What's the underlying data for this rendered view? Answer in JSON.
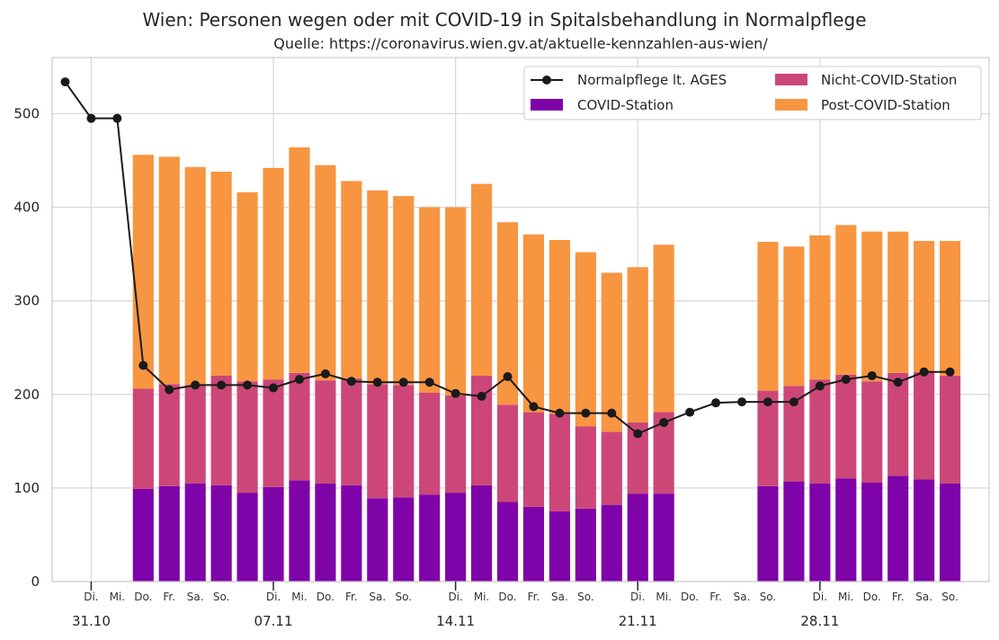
{
  "chart_data": {
    "type": "bar",
    "title": "Wien: Personen wegen oder mit COVID-19 in Spitalsbehandlung in Normalpflege",
    "subtitle": "Quelle: https://coronavirus.wien.gv.at/aktuelle-kennzahlen-aus-wien/",
    "ylim": [
      0,
      560
    ],
    "yticks": [
      0,
      100,
      200,
      300,
      400,
      500
    ],
    "grid": true,
    "legend_position": "top-right",
    "day_labels": [
      "",
      "Di.",
      "Mi.",
      "Do.",
      "Fr.",
      "Sa.",
      "So.",
      "",
      "Di.",
      "Mi.",
      "Do.",
      "Fr.",
      "Sa.",
      "So.",
      "",
      "Di.",
      "Mi.",
      "Do.",
      "Fr.",
      "Sa.",
      "So.",
      "",
      "Di.",
      "Mi.",
      "Do.",
      "Fr.",
      "Sa.",
      "So.",
      "",
      "Di.",
      "Mi.",
      "Do.",
      "Fr.",
      "Sa.",
      "So."
    ],
    "date_labels": [
      {
        "day": 1,
        "label": "31.10"
      },
      {
        "day": 8,
        "label": "07.11"
      },
      {
        "day": 15,
        "label": "14.11"
      },
      {
        "day": 22,
        "label": "21.11"
      },
      {
        "day": 29,
        "label": "28.11"
      }
    ],
    "x_range": [
      -0.5,
      35.5
    ],
    "series": [
      {
        "name": "COVID-Station",
        "color": "#7e03a8",
        "stack": "wards",
        "values": [
          null,
          null,
          null,
          99,
          102,
          105,
          103,
          95,
          101,
          108,
          105,
          103,
          89,
          90,
          93,
          95,
          103,
          85,
          80,
          75,
          78,
          82,
          94,
          94,
          null,
          null,
          null,
          102,
          107,
          105,
          110,
          106,
          113,
          109,
          105,
          null
        ]
      },
      {
        "name": "Nicht-COVID-Station",
        "color": "#cc4778",
        "stack": "wards",
        "values": [
          null,
          null,
          null,
          107,
          109,
          105,
          117,
          119,
          115,
          115,
          110,
          114,
          122,
          120,
          109,
          104,
          117,
          104,
          101,
          104,
          88,
          78,
          76,
          87,
          null,
          null,
          null,
          102,
          102,
          111,
          111,
          108,
          110,
          115,
          115,
          null
        ]
      },
      {
        "name": "Post-COVID-Station",
        "color": "#f89540",
        "stack": "wards",
        "values": [
          null,
          null,
          null,
          250,
          243,
          233,
          218,
          202,
          226,
          241,
          230,
          211,
          207,
          202,
          198,
          201,
          205,
          195,
          190,
          186,
          186,
          170,
          166,
          179,
          null,
          null,
          null,
          159,
          149,
          154,
          160,
          160,
          151,
          140,
          144,
          null
        ]
      },
      {
        "name": "Normalpflege lt. AGES",
        "type": "line",
        "color": "#1a1a1a",
        "values": [
          534,
          495,
          495,
          231,
          205,
          210,
          210,
          210,
          207,
          216,
          222,
          214,
          213,
          213,
          213,
          201,
          198,
          219,
          187,
          180,
          180,
          180,
          158,
          170,
          181,
          191,
          192,
          192,
          192,
          209,
          216,
          220,
          213,
          224,
          224,
          null
        ]
      }
    ]
  }
}
